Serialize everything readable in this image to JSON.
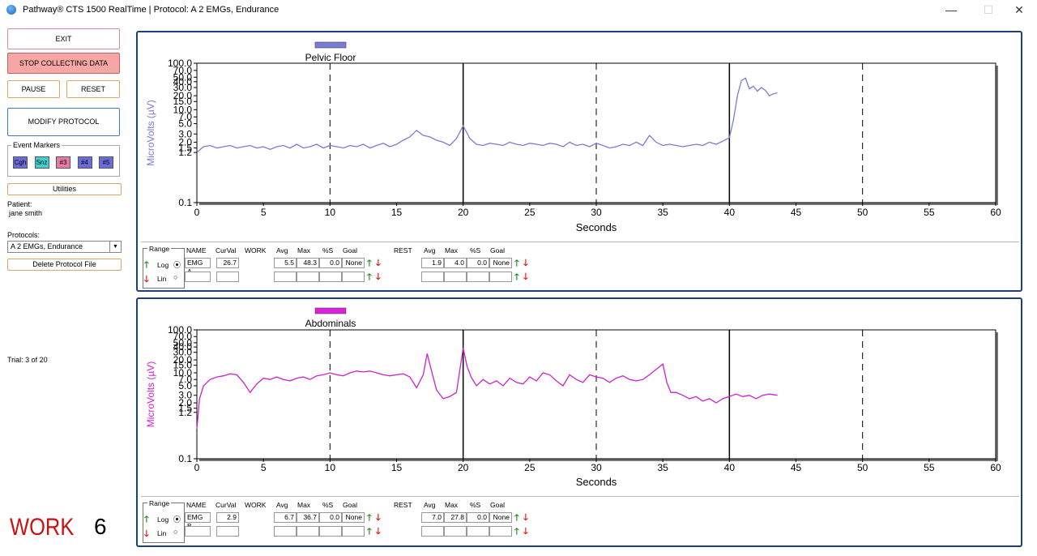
{
  "window": {
    "title": "Pathway® CTS 1500 RealTime | Protocol: A 2 EMGs, Endurance",
    "minimize": "—",
    "maximize": "☐",
    "close": "✕"
  },
  "controls": {
    "exit": "EXIT",
    "stop": "STOP COLLECTING DATA",
    "pause": "PAUSE",
    "reset": "RESET",
    "modify": "MODIFY PROTOCOL",
    "event_markers_label": "Event Markers",
    "markers": [
      {
        "label": "Cgh",
        "color": "#6b6bdc"
      },
      {
        "label": "Snz",
        "color": "#3fd0d0"
      },
      {
        "label": "#3",
        "color": "#e87aa8"
      },
      {
        "label": "#4",
        "color": "#6b6bdc"
      },
      {
        "label": "#5",
        "color": "#6b6bdc"
      }
    ],
    "utilities": "Utilities",
    "patient_label": "Patient:",
    "patient_name": "jane smith",
    "protocols_label": "Protocols:",
    "protocol_selected": "A 2 EMGs, Endurance",
    "delete_protocol": "Delete Protocol File",
    "trial_text": "Trial:  3  of  20",
    "status_word": "WORK",
    "status_count": "6"
  },
  "stats_headers": {
    "range": "Range",
    "name": "NAME",
    "curval": "CurVal",
    "work": "WORK",
    "avg": "Avg",
    "max": "Max",
    "pct": "%S",
    "goal": "Goal",
    "rest": "REST",
    "log": "Log",
    "lin": "Lin"
  },
  "chart_data": [
    {
      "type": "line",
      "title": "Pelvic Floor",
      "legend_color": "#7b7bd6",
      "line_color": "#7b7bd6",
      "ylabel": "MicroVolts (µV)",
      "xlabel": "Seconds",
      "scale": "log",
      "xlim": [
        0,
        60
      ],
      "ylim": [
        0.1,
        100
      ],
      "y_ticks": [
        "100.0",
        "70.0",
        "50.0",
        "40.0",
        "30.0",
        "20.0",
        "15.0",
        "10.0",
        "7.0",
        "5.0",
        "3.0",
        "2.0",
        "1.5",
        "1.2",
        "0.1"
      ],
      "x_ticks": [
        "0",
        "5",
        "10",
        "15",
        "20",
        "25",
        "30",
        "35",
        "40",
        "45",
        "50",
        "55",
        "60"
      ],
      "solid_lines_x": [
        20,
        40
      ],
      "dashed_lines_x": [
        10,
        30,
        50
      ],
      "x": [
        0,
        0.5,
        1,
        1.5,
        2,
        2.5,
        3,
        3.5,
        4,
        4.5,
        5,
        5.5,
        6,
        6.5,
        7,
        7.5,
        8,
        8.5,
        9,
        9.5,
        10,
        10.5,
        11,
        11.5,
        12,
        12.5,
        13,
        13.5,
        14,
        14.5,
        15,
        15.5,
        16,
        16.5,
        17,
        17.5,
        18,
        18.5,
        19,
        19.5,
        20,
        20.5,
        21,
        21.5,
        22,
        22.5,
        23,
        23.5,
        24,
        24.5,
        25,
        25.5,
        26,
        26.5,
        27,
        27.5,
        28,
        28.5,
        29,
        29.5,
        30,
        30.5,
        31,
        31.5,
        32,
        32.5,
        33,
        33.5,
        34,
        34.5,
        35,
        35.5,
        36,
        36.5,
        37,
        37.5,
        38,
        38.5,
        39,
        39.5,
        40,
        40.3,
        40.6,
        40.9,
        41.2,
        41.5,
        41.8,
        42.1,
        42.4,
        42.7,
        43,
        43.3,
        43.6
      ],
      "values": [
        1.2,
        1.6,
        1.7,
        1.5,
        1.6,
        1.7,
        1.5,
        1.6,
        1.7,
        1.5,
        1.6,
        1.4,
        1.6,
        1.7,
        1.5,
        1.8,
        1.5,
        1.6,
        1.8,
        1.5,
        1.7,
        1.6,
        1.5,
        1.7,
        1.6,
        1.8,
        1.5,
        1.7,
        1.9,
        1.6,
        1.8,
        2.2,
        2.6,
        3.6,
        2.8,
        2.6,
        2.2,
        2.0,
        1.7,
        2.4,
        4.5,
        2.4,
        1.8,
        1.7,
        1.9,
        1.8,
        1.7,
        2.0,
        1.8,
        1.7,
        1.9,
        1.8,
        1.7,
        1.9,
        1.8,
        1.6,
        2.0,
        1.7,
        1.8,
        1.6,
        1.9,
        1.7,
        1.5,
        1.6,
        1.8,
        1.7,
        2.0,
        1.7,
        2.8,
        2.0,
        1.7,
        1.8,
        1.7,
        1.6,
        1.7,
        1.8,
        1.7,
        2.0,
        1.8,
        2.1,
        2.5,
        6.0,
        20.0,
        42.0,
        48.0,
        28.0,
        32.0,
        25.0,
        30.0,
        26.0,
        20.0,
        22.0,
        23.0
      ],
      "stats": {
        "name": "EMG A",
        "curval": "26.7",
        "work_avg": "5.5",
        "work_max": "48.3",
        "work_pct": "0.0",
        "work_goal": "None",
        "rest_avg": "1.9",
        "rest_max": "4.0",
        "rest_pct": "0.0",
        "rest_goal": "None"
      }
    },
    {
      "type": "line",
      "title": "Abdominals",
      "legend_color": "#dd22dd",
      "line_color": "#cc22cc",
      "ylabel": "MicroVolts (µV)",
      "xlabel": "Seconds",
      "scale": "log",
      "xlim": [
        0,
        60
      ],
      "ylim": [
        0.1,
        100
      ],
      "y_ticks": [
        "100.0",
        "70.0",
        "50.0",
        "40.0",
        "30.0",
        "20.0",
        "15.0",
        "10.0",
        "7.0",
        "5.0",
        "3.0",
        "2.0",
        "1.5",
        "1.2",
        "0.1"
      ],
      "x_ticks": [
        "0",
        "5",
        "10",
        "15",
        "20",
        "25",
        "30",
        "35",
        "40",
        "45",
        "50",
        "55",
        "60"
      ],
      "solid_lines_x": [
        20,
        40
      ],
      "dashed_lines_x": [
        10,
        30,
        50
      ],
      "x": [
        0,
        0.2,
        0.5,
        1,
        1.5,
        2,
        2.5,
        3,
        3.5,
        4,
        4.5,
        5,
        5.5,
        6,
        6.5,
        7,
        7.5,
        8,
        8.5,
        9,
        9.5,
        10,
        10.5,
        11,
        11.5,
        12,
        12.5,
        13,
        13.5,
        14,
        14.5,
        15,
        15.5,
        16,
        16.5,
        17,
        17.3,
        17.6,
        18,
        18.5,
        19,
        19.5,
        20,
        20.3,
        20.6,
        21,
        21.5,
        22,
        22.5,
        23,
        23.5,
        24,
        24.5,
        25,
        25.5,
        26,
        26.5,
        27,
        27.5,
        28,
        28.5,
        29,
        29.5,
        30,
        30.5,
        31,
        31.5,
        32,
        32.5,
        33,
        33.5,
        34,
        34.5,
        35,
        35.3,
        35.6,
        36,
        36.5,
        37,
        37.5,
        38,
        38.5,
        39,
        39.5,
        40,
        40.5,
        41,
        41.5,
        42,
        42.5,
        43,
        43.6
      ],
      "values": [
        0.5,
        2.5,
        5.0,
        7.0,
        8.0,
        8.5,
        9.5,
        9.0,
        6.0,
        3.5,
        5.5,
        7.5,
        7.0,
        8.0,
        7.0,
        6.5,
        7.5,
        8.0,
        7.0,
        8.5,
        9.0,
        10.0,
        9.0,
        8.5,
        10.0,
        11.0,
        10.5,
        11.0,
        10.0,
        9.0,
        8.5,
        9.0,
        9.5,
        8.0,
        4.5,
        9.0,
        28.0,
        12.0,
        4.0,
        2.5,
        2.8,
        3.5,
        38.0,
        14.0,
        8.0,
        5.0,
        7.0,
        5.5,
        6.5,
        5.0,
        7.5,
        6.0,
        5.5,
        8.0,
        6.5,
        10.0,
        9.0,
        6.5,
        5.0,
        9.0,
        7.0,
        6.0,
        9.0,
        8.0,
        7.5,
        6.0,
        7.5,
        8.5,
        7.0,
        6.5,
        7.0,
        9.0,
        12.0,
        16.0,
        6.0,
        3.5,
        3.5,
        3.0,
        2.5,
        2.8,
        2.2,
        2.5,
        2.0,
        2.5,
        2.8,
        3.2,
        2.8,
        3.0,
        2.5,
        3.0,
        3.2,
        3.0
      ],
      "stats": {
        "name": "EMG B",
        "curval": "2.9",
        "work_avg": "6.7",
        "work_max": "36.7",
        "work_pct": "0.0",
        "work_goal": "None",
        "rest_avg": "7.0",
        "rest_max": "27.8",
        "rest_pct": "0.0",
        "rest_goal": "None"
      }
    }
  ]
}
